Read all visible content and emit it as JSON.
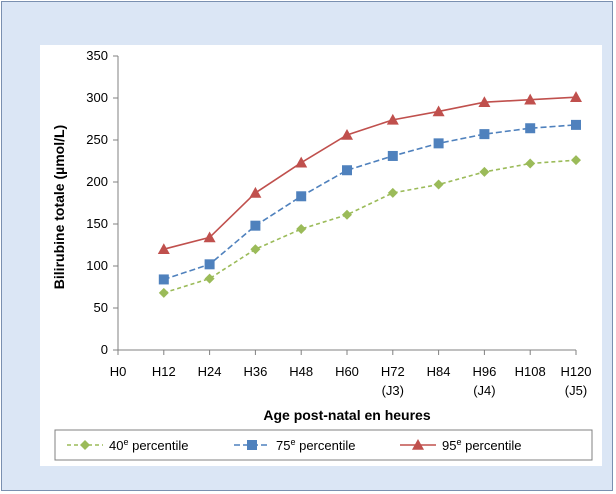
{
  "chart_data": {
    "type": "line",
    "title": "",
    "xlabel": "Age post-natal en heures",
    "ylabel": "Bilirubine totale (µmol/L)",
    "ylim": [
      0,
      350
    ],
    "yticks": [
      0,
      50,
      100,
      150,
      200,
      250,
      300,
      350
    ],
    "categories": [
      {
        "label": "H0",
        "sub": ""
      },
      {
        "label": "H12",
        "sub": ""
      },
      {
        "label": "H24",
        "sub": ""
      },
      {
        "label": "H36",
        "sub": ""
      },
      {
        "label": "H48",
        "sub": ""
      },
      {
        "label": "H60",
        "sub": ""
      },
      {
        "label": "H72",
        "sub": "(J3)"
      },
      {
        "label": "H84",
        "sub": ""
      },
      {
        "label": "H96",
        "sub": "(J4)"
      },
      {
        "label": "H108",
        "sub": ""
      },
      {
        "label": "H120",
        "sub": "(J5)"
      }
    ],
    "x": [
      12,
      24,
      36,
      48,
      60,
      72,
      84,
      96,
      108,
      120
    ],
    "series": [
      {
        "name": "40",
        "sup": "e",
        "suffix": " percentile",
        "color": "#9bbb59",
        "dash": "4,3",
        "marker": "diamond",
        "values": [
          68,
          85,
          120,
          144,
          161,
          187,
          197,
          212,
          222,
          226
        ]
      },
      {
        "name": "75",
        "sup": "e",
        "suffix": " percentile",
        "color": "#4f81bd",
        "dash": "6,3",
        "marker": "square",
        "values": [
          84,
          102,
          148,
          183,
          214,
          231,
          246,
          257,
          264,
          268
        ]
      },
      {
        "name": "95",
        "sup": "e",
        "suffix": " percentile",
        "color": "#c0504d",
        "dash": "",
        "marker": "triangle",
        "values": [
          120,
          134,
          187,
          223,
          256,
          274,
          284,
          295,
          298,
          301
        ]
      }
    ],
    "grid": false,
    "legend": "bottom"
  }
}
